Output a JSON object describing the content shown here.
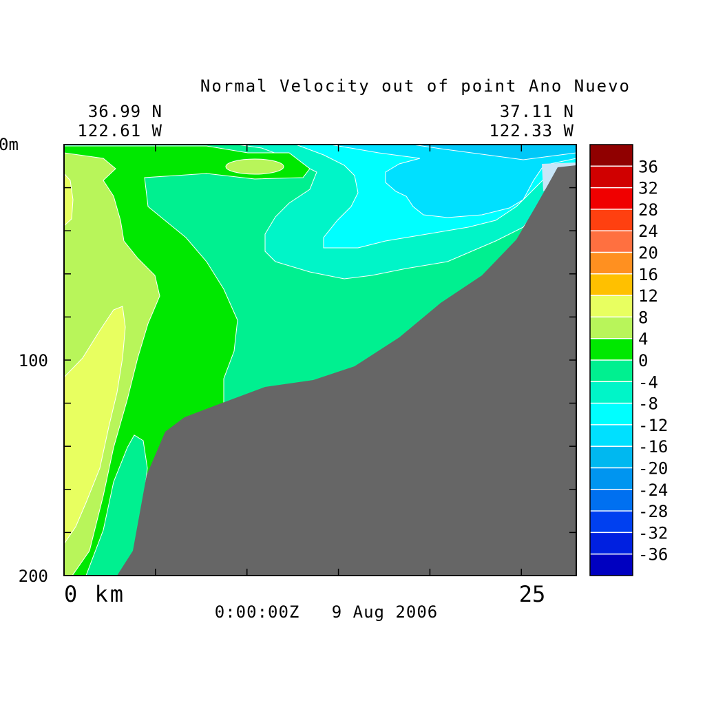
{
  "chart_data": {
    "type": "heatmap",
    "title": "Normal Velocity out of point Ano Nuevo",
    "start_point": {
      "lat": "36.99 N",
      "lon": "122.61 W"
    },
    "end_point": {
      "lat": "37.11 N",
      "lon": "122.33 W"
    },
    "timestamp": "0:00:00Z   9 Aug 2006",
    "x_axis": {
      "label": "km",
      "ticks": [
        {
          "value": 0,
          "text": "0 km"
        },
        {
          "value": 25,
          "text": "25"
        }
      ],
      "range": [
        0,
        28
      ]
    },
    "y_axis": {
      "unit": "m",
      "ticks": [
        {
          "value": 0,
          "text": "0m"
        },
        {
          "value": 100,
          "text": "100"
        },
        {
          "value": 200,
          "text": "200"
        }
      ],
      "range": [
        0,
        200
      ],
      "inverted": true
    },
    "colorbar": {
      "levels": [
        -40,
        -36,
        -32,
        -28,
        -24,
        -20,
        -16,
        -12,
        -8,
        -4,
        0,
        4,
        8,
        12,
        16,
        20,
        24,
        28,
        32,
        36,
        40
      ],
      "labels": [
        "-36",
        "-32",
        "-28",
        "-24",
        "-20",
        "-16",
        "-12",
        "-8",
        "-4",
        "0",
        "4",
        "8",
        "12",
        "16",
        "20",
        "24",
        "28",
        "32",
        "36"
      ],
      "colors": [
        "#0000c0",
        "#0020e0",
        "#0040f0",
        "#0070f0",
        "#0095f0",
        "#00b8f0",
        "#00e0ff",
        "#00ffff",
        "#00f5c8",
        "#00f090",
        "#00e800",
        "#b8f55a",
        "#e8ff60",
        "#ffc000",
        "#ff9020",
        "#ff7040",
        "#ff4010",
        "#f00000",
        "#d00000",
        "#900000"
      ]
    },
    "bathymetry": {
      "color": "#666666"
    }
  }
}
